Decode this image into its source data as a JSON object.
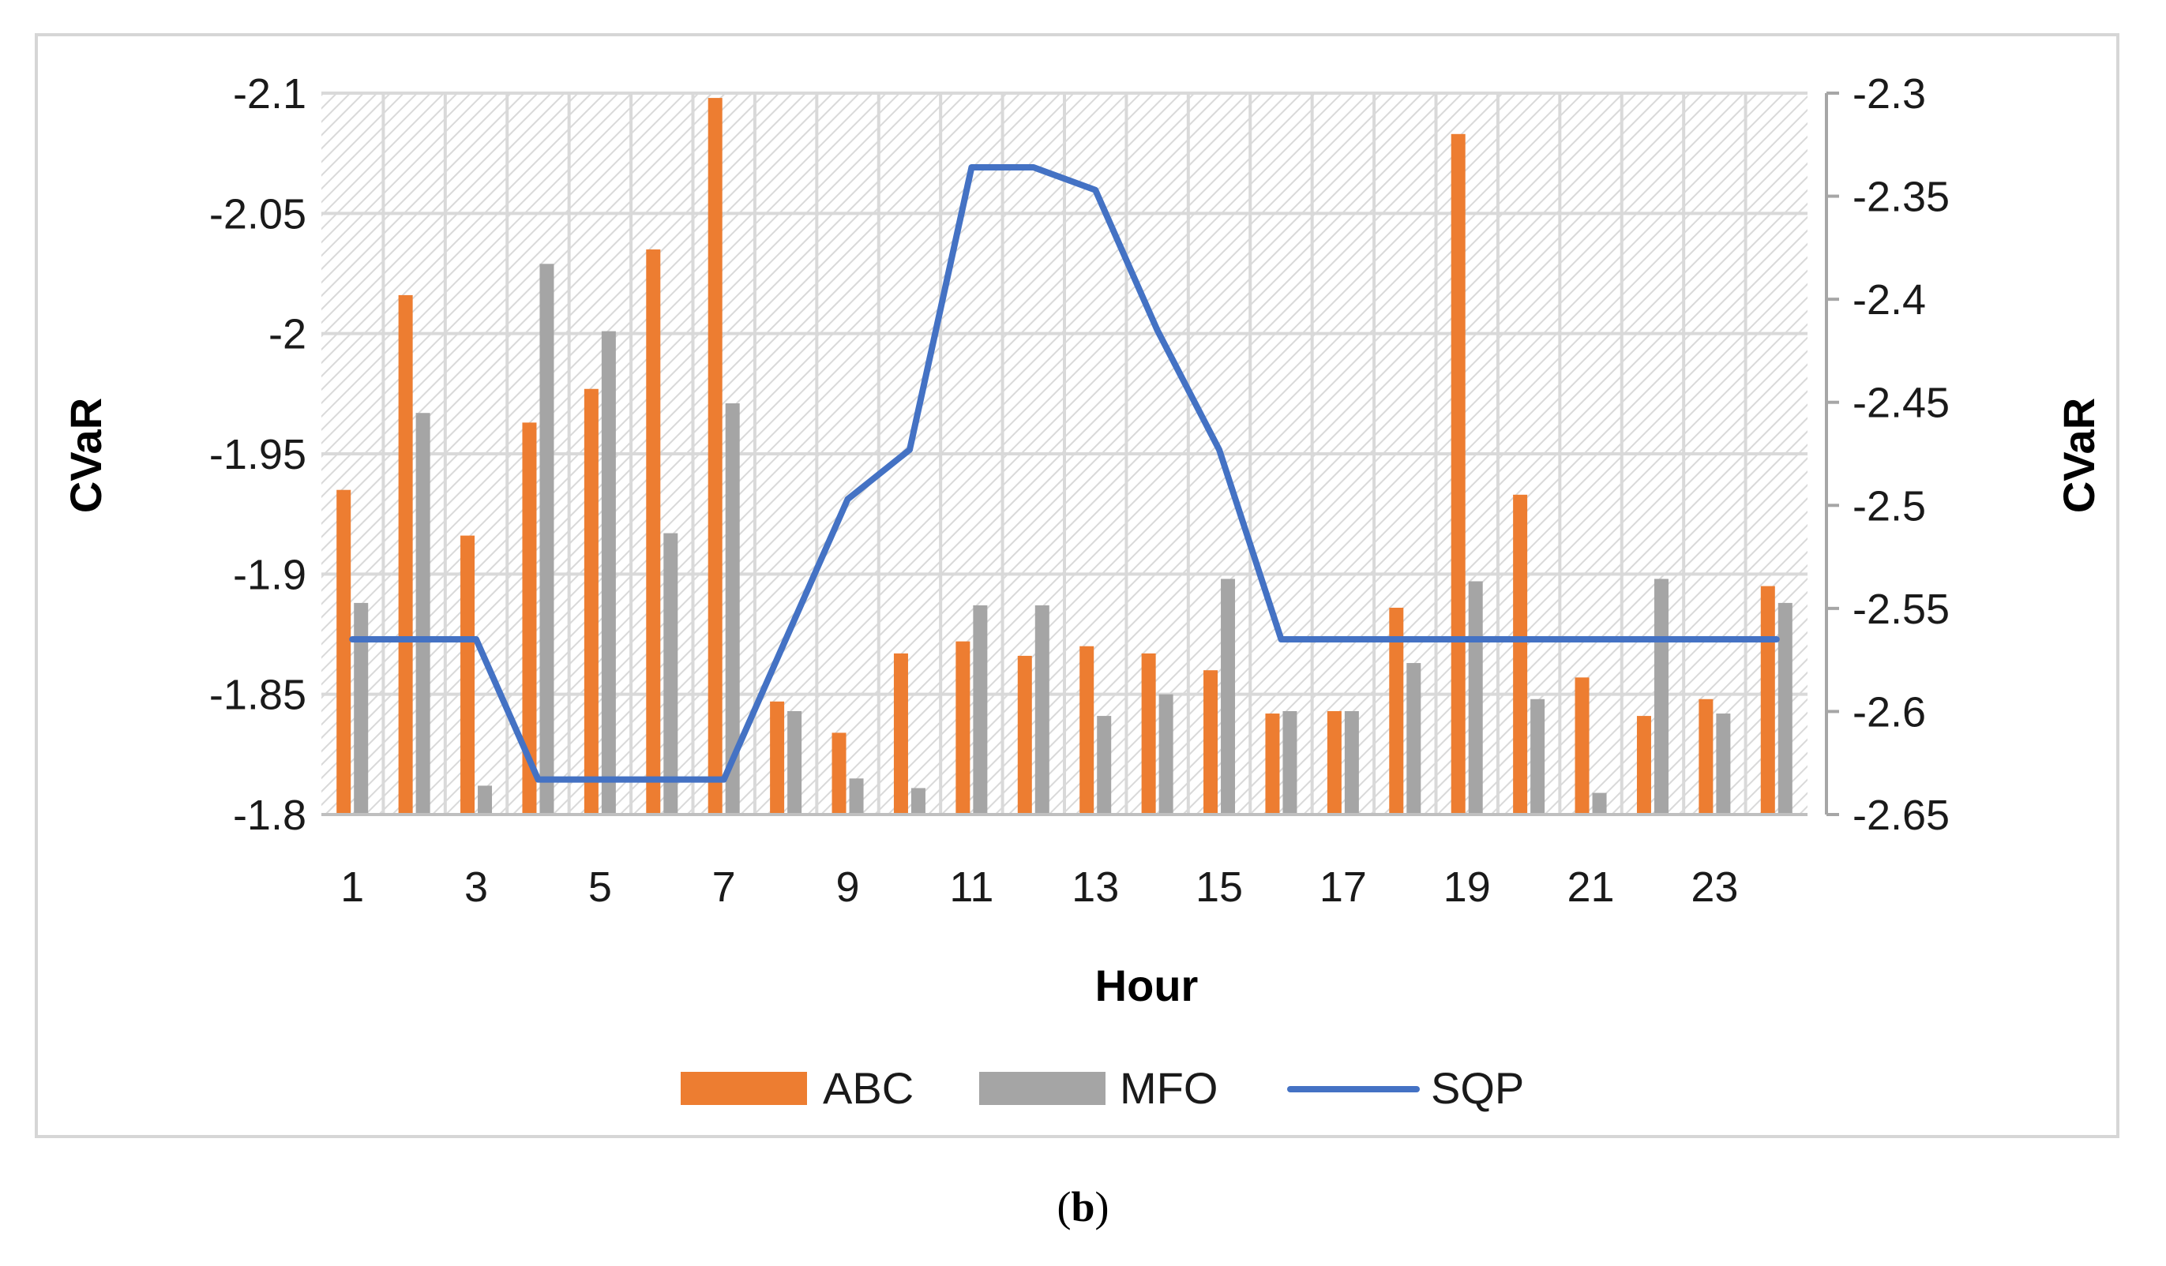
{
  "chart_data": {
    "type": "bar",
    "xlabel": "Hour",
    "ylabel_left": "CVaR",
    "ylabel_right": "CVaR",
    "x": [
      1,
      2,
      3,
      4,
      5,
      6,
      7,
      8,
      9,
      10,
      11,
      12,
      13,
      14,
      15,
      16,
      17,
      18,
      19,
      20,
      21,
      22,
      23,
      24
    ],
    "x_tick_labels": [
      "1",
      "3",
      "5",
      "7",
      "9",
      "11",
      "13",
      "15",
      "17",
      "19",
      "21",
      "23"
    ],
    "left_axis": {
      "ylim": [
        -1.8,
        -2.1
      ],
      "ticks": [
        "-2.1",
        "-2.05",
        "-2",
        "-1.95",
        "-1.9",
        "-1.85",
        "-1.8"
      ],
      "tick_values": [
        -2.1,
        -2.05,
        -2.0,
        -1.95,
        -1.9,
        -1.85,
        -1.8
      ]
    },
    "right_axis": {
      "ylim": [
        -2.65,
        -2.3
      ],
      "ticks": [
        "-2.3",
        "-2.35",
        "-2.4",
        "-2.45",
        "-2.5",
        "-2.55",
        "-2.6",
        "-2.65"
      ],
      "tick_values": [
        -2.3,
        -2.35,
        -2.4,
        -2.45,
        -2.5,
        -2.55,
        -2.6,
        -2.65
      ]
    },
    "series": [
      {
        "name": "ABC",
        "type": "bar",
        "axis": "left",
        "color": "#ED7D31",
        "values": [
          -1.935,
          -2.016,
          -1.916,
          -1.963,
          -1.977,
          -2.035,
          -2.098,
          -1.847,
          -1.834,
          -1.867,
          -1.872,
          -1.866,
          -1.87,
          -1.867,
          -1.86,
          -1.842,
          -1.843,
          -1.886,
          -2.083,
          -1.933,
          -1.857,
          -1.841,
          -1.848,
          -1.895
        ]
      },
      {
        "name": "MFO",
        "type": "bar",
        "axis": "left",
        "color": "#A5A5A5",
        "values": [
          -1.888,
          -1.967,
          -1.812,
          -2.029,
          -2.001,
          -1.917,
          -1.971,
          -1.843,
          -1.815,
          -1.811,
          -1.887,
          -1.887,
          -1.841,
          -1.85,
          -1.898,
          -1.843,
          -1.843,
          -1.863,
          -1.897,
          -1.848,
          -1.809,
          -1.898,
          -1.842,
          -1.888
        ]
      },
      {
        "name": "SQP",
        "type": "line",
        "axis": "right",
        "color": "#4472C4",
        "values": [
          -2.565,
          -2.565,
          -2.565,
          -2.633,
          -2.633,
          -2.633,
          -2.633,
          -2.565,
          -2.497,
          -2.473,
          -2.336,
          -2.336,
          -2.347,
          -2.415,
          -2.473,
          -2.565,
          -2.565,
          -2.565,
          -2.565,
          -2.565,
          -2.565,
          -2.565,
          -2.565,
          -2.565
        ]
      }
    ],
    "legend": [
      "ABC",
      "MFO",
      "SQP"
    ],
    "legend_position": "bottom",
    "grid": true,
    "plot_background": "diagonal hatch"
  },
  "caption": {
    "open": "(",
    "letter": "b",
    "close": ")"
  }
}
